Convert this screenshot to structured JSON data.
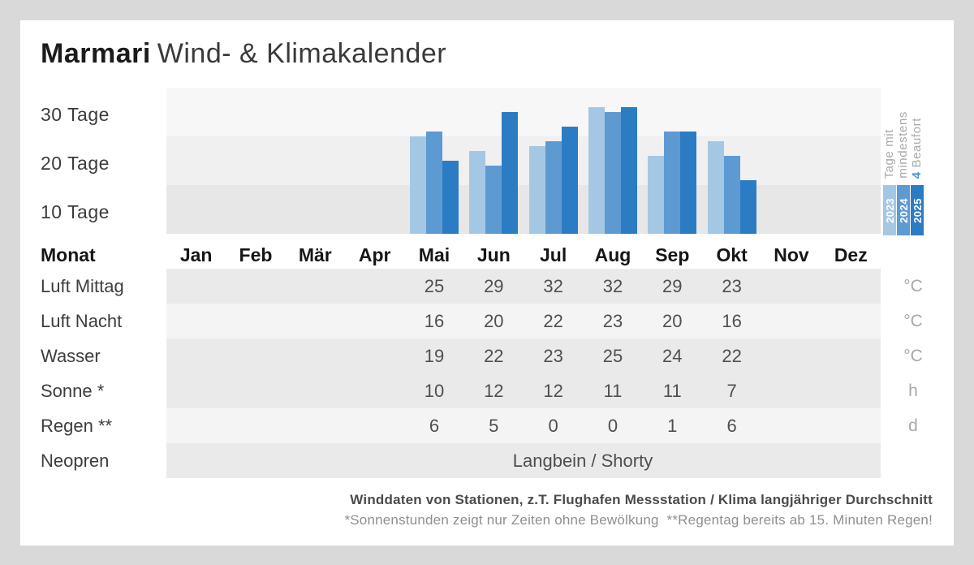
{
  "title": {
    "brand": "Marmari",
    "rest": "Wind- & Klimakalender"
  },
  "chart_data": {
    "type": "bar",
    "title_lines": [
      "Tage mit",
      "mindestens"
    ],
    "title_accent": "4",
    "title_accent_rest": " Beaufort",
    "categories": [
      "Jan",
      "Feb",
      "Mär",
      "Apr",
      "Mai",
      "Jun",
      "Jul",
      "Aug",
      "Sep",
      "Okt",
      "Nov",
      "Dez"
    ],
    "series": [
      {
        "name": "2023",
        "color": "#a4c8e4",
        "values": [
          0,
          0,
          0,
          0,
          20,
          17,
          18,
          26,
          16,
          19,
          0,
          0
        ]
      },
      {
        "name": "2024",
        "color": "#5e9ad2",
        "values": [
          0,
          0,
          0,
          0,
          21,
          14,
          19,
          25,
          21,
          16,
          0,
          0
        ]
      },
      {
        "name": "2025",
        "color": "#2c7cc4",
        "values": [
          0,
          0,
          0,
          0,
          15,
          25,
          22,
          26,
          21,
          11,
          0,
          0
        ]
      }
    ],
    "y_ticks": [
      "30 Tage",
      "20 Tage",
      "10 Tage"
    ],
    "ylim": [
      0,
      30
    ],
    "unit": "Tage",
    "legend_position": "right",
    "grid_bands": true
  },
  "table": {
    "corner_label": "Monat",
    "months": [
      "Jan",
      "Feb",
      "Mär",
      "Apr",
      "Mai",
      "Jun",
      "Jul",
      "Aug",
      "Sep",
      "Okt",
      "Nov",
      "Dez"
    ],
    "rows": [
      {
        "label": "Luft Mittag",
        "unit": "°C",
        "shade": "dark",
        "values": [
          "",
          "",
          "",
          "",
          "25",
          "29",
          "32",
          "32",
          "29",
          "23",
          "",
          ""
        ]
      },
      {
        "label": "Luft Nacht",
        "unit": "°C",
        "shade": "light",
        "values": [
          "",
          "",
          "",
          "",
          "16",
          "20",
          "22",
          "23",
          "20",
          "16",
          "",
          ""
        ]
      },
      {
        "label": "Wasser",
        "unit": "°C",
        "shade": "dark",
        "values": [
          "",
          "",
          "",
          "",
          "19",
          "22",
          "23",
          "25",
          "24",
          "22",
          "",
          ""
        ]
      },
      {
        "label": "Sonne *",
        "unit": "h",
        "shade": "dark",
        "values": [
          "",
          "",
          "",
          "",
          "10",
          "12",
          "12",
          "11",
          "11",
          "7",
          "",
          ""
        ]
      },
      {
        "label": "Regen **",
        "unit": "d",
        "shade": "light",
        "values": [
          "",
          "",
          "",
          "",
          "6",
          "5",
          "0",
          "0",
          "1",
          "6",
          "",
          ""
        ]
      },
      {
        "label": "Neopren",
        "unit": "",
        "shade": "dark",
        "span_text": "Langbein / Shorty"
      }
    ]
  },
  "footer": {
    "line1": "Winddaten von Stationen, z.T. Flughafen Messstation / Klima langjähriger Durchschnitt",
    "line2": "*Sonnenstunden zeigt nur Zeiten ohne Bewölkung  **Regentag bereits ab 15. Minuten Regen!"
  }
}
